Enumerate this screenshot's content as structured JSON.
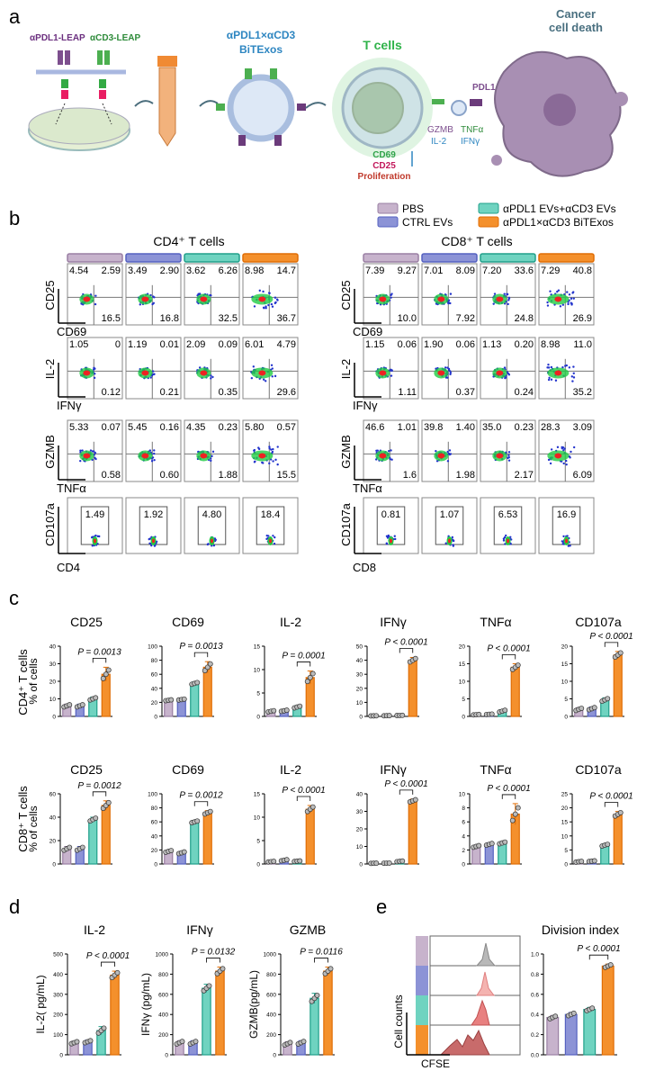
{
  "panel_letters": [
    "a",
    "b",
    "c",
    "d",
    "e"
  ],
  "colors": {
    "pbs": "#c7b3cc",
    "ctrl": "#8c93d6",
    "mix": "#6fd3c0",
    "bitex": "#f4902c",
    "pbs_edge": "#9a7fa3",
    "ctrl_edge": "#5561c0",
    "mix_edge": "#20a08a",
    "bitex_edge": "#e06d05"
  },
  "panel_a": {
    "leap_labels": [
      "αPDL1-LEAP",
      "αCD3-LEAP"
    ],
    "bitex_title": [
      "αPDL1×αCD3",
      "BiTExos"
    ],
    "tcell_title": "T cells",
    "death_title": [
      "Cancer",
      "cell death"
    ],
    "pdl1_label": "PDL1",
    "cytokines": [
      "GZMB",
      "TNFα",
      "IL-2",
      "IFNγ"
    ],
    "markers": [
      "CD69",
      "CD25",
      "Proliferation"
    ]
  },
  "legend": [
    "PBS",
    "CTRL EVs",
    "αPDL1 EVs+αCD3 EVs",
    "αPDL1×αCD3 BiTExos"
  ],
  "panel_b": {
    "cd4_title": "CD4⁺ T cells",
    "cd8_title": "CD8⁺ T cells",
    "cd4": {
      "rows": [
        {
          "ylabel": "CD25",
          "xlabel": "CD69",
          "q": [
            [
              "4.54",
              "2.59",
              "16.5"
            ],
            [
              "3.49",
              "2.90",
              "16.8"
            ],
            [
              "3.62",
              "6.26",
              "32.5"
            ],
            [
              "8.98",
              "14.7",
              "36.7"
            ]
          ]
        },
        {
          "ylabel": "IL-2",
          "xlabel": "IFNγ",
          "q": [
            [
              "1.05",
              "0",
              "0.12"
            ],
            [
              "1.19",
              "0.01",
              "0.21"
            ],
            [
              "2.09",
              "0.09",
              "0.35"
            ],
            [
              "6.01",
              "4.79",
              "29.6"
            ]
          ]
        },
        {
          "ylabel": "GZMB",
          "xlabel": "TNFα",
          "q": [
            [
              "5.33",
              "0.07",
              "0.58"
            ],
            [
              "5.45",
              "0.16",
              "0.60"
            ],
            [
              "4.35",
              "0.23",
              "1.88"
            ],
            [
              "5.80",
              "0.57",
              "15.5"
            ]
          ]
        }
      ],
      "cd107a": {
        "ylabel": "CD107a",
        "xlabel": "CD4",
        "v": [
          "1.49",
          "1.92",
          "4.80",
          "18.4"
        ]
      }
    },
    "cd8": {
      "rows": [
        {
          "ylabel": "CD25",
          "xlabel": "CD69",
          "q": [
            [
              "7.39",
              "9.27",
              "10.0"
            ],
            [
              "7.01",
              "8.09",
              "7.92"
            ],
            [
              "7.20",
              "33.6",
              "24.8"
            ],
            [
              "7.29",
              "40.8",
              "26.9"
            ]
          ]
        },
        {
          "ylabel": "IL-2",
          "xlabel": "IFNγ",
          "q": [
            [
              "1.15",
              "0.06",
              "1.11"
            ],
            [
              "1.90",
              "0.06",
              "0.37"
            ],
            [
              "1.13",
              "0.20",
              "0.24"
            ],
            [
              "8.98",
              "11.0",
              "35.2"
            ]
          ]
        },
        {
          "ylabel": "GZMB",
          "xlabel": "TNFα",
          "q": [
            [
              "46.6",
              "1.01",
              "1.6"
            ],
            [
              "39.8",
              "1.40",
              "1.98"
            ],
            [
              "35.0",
              "0.23",
              "2.17"
            ],
            [
              "28.3",
              "3.09",
              "6.09"
            ]
          ]
        }
      ],
      "cd107a": {
        "ylabel": "CD107a",
        "xlabel": "CD8",
        "v": [
          "0.81",
          "1.07",
          "6.53",
          "16.9"
        ]
      }
    }
  },
  "panel_c": {
    "row_labels": [
      "CD4⁺ T cells",
      "CD8⁺ T cells"
    ],
    "ylabel": "% of cells"
  },
  "panel_d": {},
  "panel_e": {
    "hist_ylabel": "Cell counts",
    "hist_xlabel": "CFSE"
  },
  "chart_data": [
    {
      "type": "bar",
      "group": "CD4⁺ T cells",
      "title": "CD25",
      "ylabel": "% of cells",
      "ylim": [
        0,
        40
      ],
      "yticks": [
        0,
        10,
        20,
        30,
        40
      ],
      "categories": [
        "PBS",
        "CTRL EVs",
        "αPDL1 EVs+αCD3 EVs",
        "αPDL1×αCD3 BiTExos"
      ],
      "values": [
        6,
        6,
        10,
        24
      ],
      "errors": [
        1,
        1,
        1,
        4
      ],
      "pvalue": "P = 0.0013"
    },
    {
      "type": "bar",
      "group": "CD4⁺ T cells",
      "title": "CD69",
      "ylabel": "",
      "ylim": [
        0,
        100
      ],
      "yticks": [
        0,
        20,
        40,
        60,
        80,
        100
      ],
      "categories": [
        "PBS",
        "CTRL EVs",
        "αPDL1 EVs+αCD3 EVs",
        "αPDL1×αCD3 BiTExos"
      ],
      "values": [
        23,
        24,
        47,
        70
      ],
      "errors": [
        1,
        1,
        2,
        8
      ],
      "pvalue": "P = 0.0013"
    },
    {
      "type": "bar",
      "group": "CD4⁺ T cells",
      "title": "IL-2",
      "ylabel": "",
      "ylim": [
        0,
        15
      ],
      "yticks": [
        0,
        5,
        10,
        15
      ],
      "categories": [
        "PBS",
        "CTRL EVs",
        "αPDL1 EVs+αCD3 EVs",
        "αPDL1×αCD3 BiTExos"
      ],
      "values": [
        1.1,
        1.2,
        2,
        8.3
      ],
      "errors": [
        0.2,
        0.2,
        0.3,
        1.4
      ],
      "pvalue": "P = 0.0001"
    },
    {
      "type": "bar",
      "group": "CD4⁺ T cells",
      "title": "IFNγ",
      "ylabel": "",
      "ylim": [
        0,
        50
      ],
      "yticks": [
        0,
        10,
        20,
        30,
        40,
        50
      ],
      "categories": [
        "PBS",
        "CTRL EVs",
        "αPDL1 EVs+αCD3 EVs",
        "αPDL1×αCD3 BiTExos"
      ],
      "values": [
        0.4,
        0.5,
        0.7,
        40
      ],
      "errors": [
        0.1,
        0.1,
        0.1,
        2
      ],
      "pvalue": "P < 0.0001"
    },
    {
      "type": "bar",
      "group": "CD4⁺ T cells",
      "title": "TNFα",
      "ylabel": "",
      "ylim": [
        0,
        20
      ],
      "yticks": [
        0,
        5,
        10,
        15,
        20
      ],
      "categories": [
        "PBS",
        "CTRL EVs",
        "αPDL1 EVs+αCD3 EVs",
        "αPDL1×αCD3 BiTExos"
      ],
      "values": [
        0.5,
        0.6,
        1.5,
        14
      ],
      "errors": [
        0.1,
        0.1,
        0.4,
        1
      ],
      "pvalue": "P < 0.0001"
    },
    {
      "type": "bar",
      "group": "CD4⁺ T cells",
      "title": "CD107a",
      "ylabel": "",
      "ylim": [
        0,
        20
      ],
      "yticks": [
        0,
        5,
        10,
        15,
        20
      ],
      "categories": [
        "PBS",
        "CTRL EVs",
        "αPDL1 EVs+αCD3 EVs",
        "αPDL1×αCD3 BiTExos"
      ],
      "values": [
        2,
        2.2,
        4.7,
        17.5
      ],
      "errors": [
        0.5,
        0.5,
        0.6,
        1
      ],
      "pvalue": "P < 0.0001"
    },
    {
      "type": "bar",
      "group": "CD8⁺ T cells",
      "title": "CD25",
      "ylabel": "% of cells",
      "ylim": [
        0,
        60
      ],
      "yticks": [
        0,
        20,
        40,
        60
      ],
      "categories": [
        "PBS",
        "CTRL EVs",
        "αPDL1 EVs+αCD3 EVs",
        "αPDL1×αCD3 BiTExos"
      ],
      "values": [
        13,
        13,
        38,
        50
      ],
      "errors": [
        2,
        2,
        2,
        4
      ],
      "pvalue": "P = 0.0012"
    },
    {
      "type": "bar",
      "group": "CD8⁺ T cells",
      "title": "CD69",
      "ylabel": "",
      "ylim": [
        0,
        100
      ],
      "yticks": [
        0,
        20,
        40,
        60,
        80,
        100
      ],
      "categories": [
        "PBS",
        "CTRL EVs",
        "αPDL1 EVs+αCD3 EVs",
        "αPDL1×αCD3 BiTExos"
      ],
      "values": [
        18,
        16,
        60,
        73
      ],
      "errors": [
        2,
        2,
        2,
        3
      ],
      "pvalue": "P = 0.0012"
    },
    {
      "type": "bar",
      "group": "CD8⁺ T cells",
      "title": "IL-2",
      "ylabel": "",
      "ylim": [
        0,
        15
      ],
      "yticks": [
        0,
        5,
        10,
        15
      ],
      "categories": [
        "PBS",
        "CTRL EVs",
        "αPDL1 EVs+αCD3 EVs",
        "αPDL1×αCD3 BiTExos"
      ],
      "values": [
        0.5,
        0.8,
        0.6,
        11.7
      ],
      "errors": [
        0.1,
        0.2,
        0.1,
        0.8
      ],
      "pvalue": "P < 0.0001"
    },
    {
      "type": "bar",
      "group": "CD8⁺ T cells",
      "title": "IFNγ",
      "ylabel": "",
      "ylim": [
        0,
        40
      ],
      "yticks": [
        0,
        10,
        20,
        30,
        40
      ],
      "categories": [
        "PBS",
        "CTRL EVs",
        "αPDL1 EVs+αCD3 EVs",
        "αPDL1×αCD3 BiTExos"
      ],
      "values": [
        0.4,
        0.5,
        1.5,
        36
      ],
      "errors": [
        0.1,
        0.1,
        0.3,
        1
      ],
      "pvalue": "P < 0.0001"
    },
    {
      "type": "bar",
      "group": "CD8⁺ T cells",
      "title": "TNFα",
      "ylabel": "",
      "ylim": [
        0,
        10
      ],
      "yticks": [
        0,
        2,
        4,
        6,
        8,
        10
      ],
      "categories": [
        "PBS",
        "CTRL EVs",
        "αPDL1 EVs+αCD3 EVs",
        "αPDL1×αCD3 BiTExos"
      ],
      "values": [
        2.5,
        2.8,
        3,
        7.1
      ],
      "errors": [
        0.2,
        0.2,
        0.2,
        1.5
      ],
      "pvalue": "P <  0.0001"
    },
    {
      "type": "bar",
      "group": "CD8⁺ T cells",
      "title": "CD107a",
      "ylabel": "",
      "ylim": [
        0,
        25
      ],
      "yticks": [
        0,
        5,
        10,
        15,
        20,
        25
      ],
      "categories": [
        "PBS",
        "CTRL EVs",
        "αPDL1 EVs+αCD3 EVs",
        "αPDL1×αCD3 BiTExos"
      ],
      "values": [
        0.8,
        1,
        6.7,
        17.7
      ],
      "errors": [
        0.2,
        0.2,
        0.5,
        1
      ],
      "pvalue": "P < 0.0001"
    },
    {
      "type": "bar",
      "group": "d",
      "title": "IL-2",
      "ylabel": "IL-2( pg/mL)",
      "ylim": [
        0,
        500
      ],
      "yticks": [
        0,
        100,
        200,
        300,
        400,
        500
      ],
      "categories": [
        "PBS",
        "CTRL EVs",
        "αPDL1 EVs+αCD3 EVs",
        "αPDL1×αCD3 BiTExos"
      ],
      "values": [
        60,
        65,
        120,
        395
      ],
      "errors": [
        8,
        8,
        20,
        20
      ],
      "pvalue": "P < 0.0001"
    },
    {
      "type": "bar",
      "group": "d",
      "title": "IFNγ",
      "ylabel": "IFNγ (pg/mL)",
      "ylim": [
        0,
        1000
      ],
      "yticks": [
        0,
        200,
        400,
        600,
        800,
        1000
      ],
      "categories": [
        "PBS",
        "CTRL EVs",
        "αPDL1 EVs+αCD3 EVs",
        "αPDL1×αCD3 BiTExos"
      ],
      "values": [
        120,
        120,
        660,
        830
      ],
      "errors": [
        20,
        20,
        40,
        40
      ],
      "pvalue": "P = 0.0132"
    },
    {
      "type": "bar",
      "group": "d",
      "title": "GZMB",
      "ylabel": "GZMB(pg/mL)",
      "ylim": [
        0,
        1000
      ],
      "yticks": [
        0,
        200,
        400,
        600,
        800,
        1000
      ],
      "categories": [
        "PBS",
        "CTRL EVs",
        "αPDL1 EVs+αCD3 EVs",
        "αPDL1×αCD3 BiTExos"
      ],
      "values": [
        110,
        120,
        560,
        830
      ],
      "errors": [
        20,
        20,
        50,
        40
      ],
      "pvalue": "P = 0.0116"
    },
    {
      "type": "bar",
      "group": "e",
      "title": "Division index",
      "ylabel": "",
      "ylim": [
        0,
        1.0
      ],
      "yticks": [
        0.0,
        0.2,
        0.4,
        0.6,
        0.8,
        1.0
      ],
      "categories": [
        "PBS",
        "CTRL EVs",
        "αPDL1 EVs+αCD3 EVs",
        "αPDL1×αCD3 BiTExos"
      ],
      "values": [
        0.37,
        0.4,
        0.45,
        0.88
      ],
      "errors": [
        0.02,
        0.02,
        0.02,
        0.02
      ],
      "pvalue": "P < 0.0001"
    }
  ]
}
